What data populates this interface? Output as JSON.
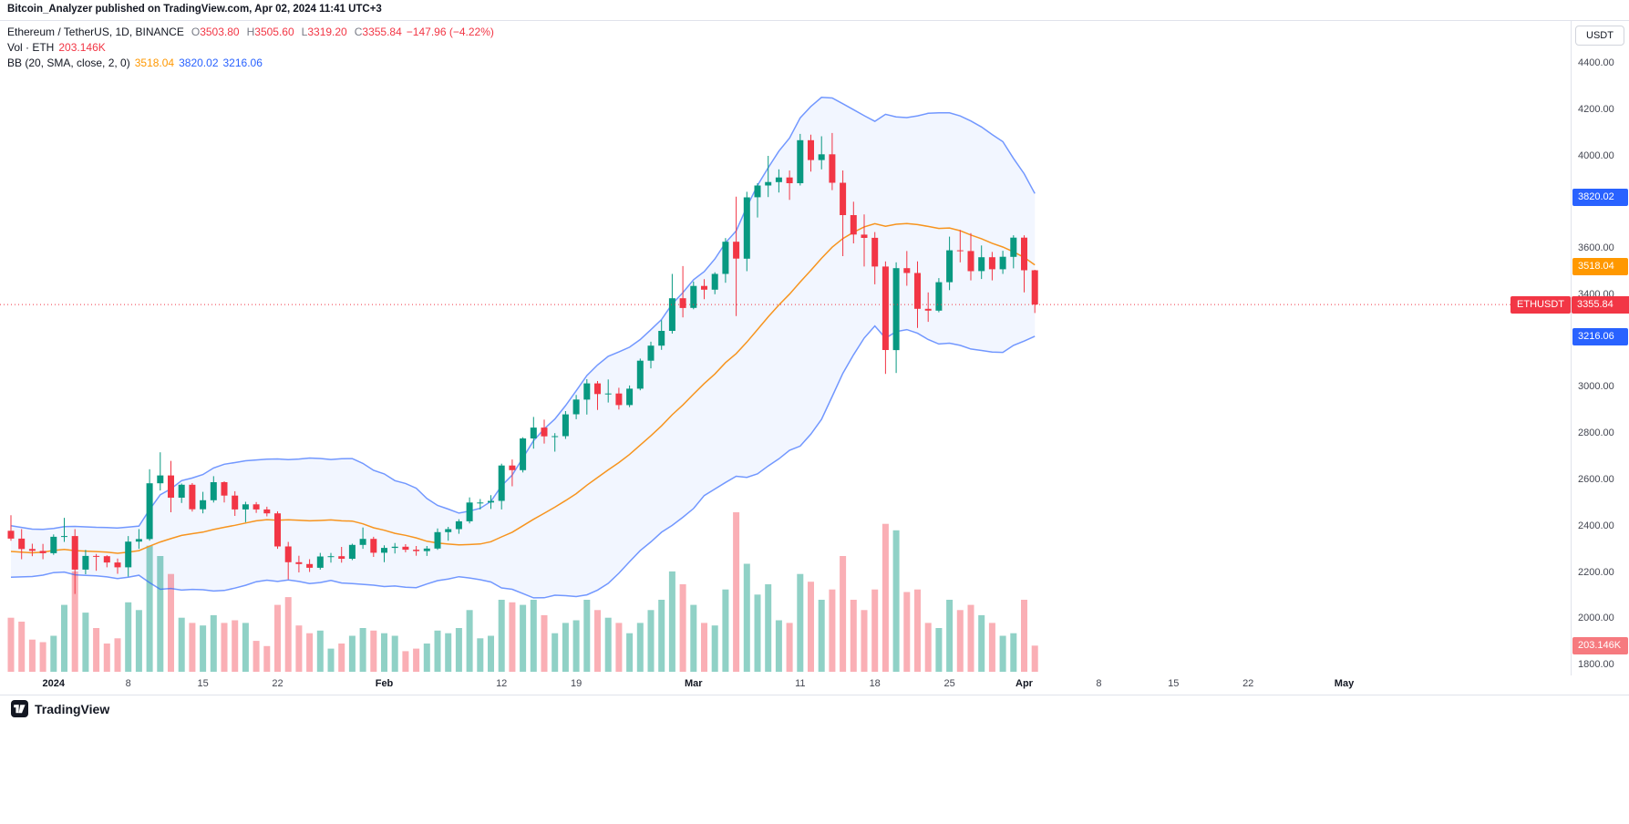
{
  "header": {
    "publish_line": "Bitcoin_Analyzer published on TradingView.com, Apr 02, 2024 11:41 UTC+3"
  },
  "legend": {
    "symbol_title": "Ethereum / TetherUS, 1D, BINANCE",
    "ohlc": [
      {
        "k": "O",
        "v": "3503.80"
      },
      {
        "k": "H",
        "v": "3505.60"
      },
      {
        "k": "L",
        "v": "3319.20"
      },
      {
        "k": "C",
        "v": "3355.84"
      }
    ],
    "change": "−147.96 (−4.22%)",
    "volume_label": "Vol · ETH",
    "volume_value": "203.146K",
    "bb_label": "BB (20, SMA, close, 2, 0)",
    "bb_basis": "3518.04",
    "bb_upper": "3820.02",
    "bb_lower": "3216.06"
  },
  "price_axis": {
    "currency_button": "USDT",
    "ticks": [
      "4400.00",
      "4200.00",
      "4000.00",
      "3800.00",
      "3600.00",
      "3400.00",
      "3200.00",
      "3000.00",
      "2800.00",
      "2600.00",
      "2400.00",
      "2200.00",
      "2000.00",
      "1800.00"
    ],
    "badges": {
      "bb_upper": {
        "text": "3820.02",
        "value": 3820.02,
        "color": "#2962ff"
      },
      "bb_basis": {
        "text": "3518.04",
        "value": 3518.04,
        "color": "#ff9800"
      },
      "last_price": {
        "symbol": "ETHUSDT",
        "text": "3355.84",
        "value": 3355.84,
        "color": "#f23645"
      },
      "bb_lower": {
        "text": "3216.06",
        "value": 3216.06,
        "color": "#2962ff"
      },
      "volume": {
        "text": "203.146K",
        "color": "#f67a7f"
      }
    }
  },
  "time_axis": {
    "ticks": [
      {
        "label": "2024",
        "day": 4,
        "major": true
      },
      {
        "label": "8",
        "day": 11
      },
      {
        "label": "15",
        "day": 18
      },
      {
        "label": "22",
        "day": 25
      },
      {
        "label": "Feb",
        "day": 35,
        "major": true
      },
      {
        "label": "12",
        "day": 46
      },
      {
        "label": "19",
        "day": 53
      },
      {
        "label": "Mar",
        "day": 64,
        "major": true
      },
      {
        "label": "11",
        "day": 74
      },
      {
        "label": "18",
        "day": 81
      },
      {
        "label": "25",
        "day": 88
      },
      {
        "label": "Apr",
        "day": 95,
        "major": true
      },
      {
        "label": "8",
        "day": 102
      },
      {
        "label": "15",
        "day": 109
      },
      {
        "label": "22",
        "day": 116
      },
      {
        "label": "May",
        "day": 125,
        "major": true
      }
    ]
  },
  "footer": {
    "brand": "TradingView"
  },
  "colors": {
    "up": "#089981",
    "down": "#f23645",
    "vol_up": "rgba(8,153,129,0.45)",
    "vol_down": "rgba(242,54,69,0.40)",
    "bb_line": "#2962ff",
    "bb_line_opacity": 0.65,
    "bb_basis": "#f7941e",
    "bb_fill": "rgba(41,98,255,0.06)",
    "last_price_line": "#f23645"
  },
  "chart_data": {
    "type": "candlestick",
    "title": "Ethereum / TetherUS, 1D, BINANCE",
    "symbol": "ETHUSDT",
    "exchange": "BINANCE",
    "interval": "1D",
    "legend_last": {
      "open": 3503.8,
      "high": 3505.6,
      "low": 3319.2,
      "close": 3355.84,
      "change": -147.96,
      "change_pct": -4.22
    },
    "indicators": {
      "bollinger": {
        "length": 20,
        "ma_type": "SMA",
        "source": "close",
        "stddev": 2,
        "offset": 0,
        "basis_last": 3518.04,
        "upper_last": 3820.02,
        "lower_last": 3216.06
      },
      "volume": {
        "label": "Vol · ETH",
        "last": "203.146K"
      }
    },
    "y_axis": {
      "min": 1800,
      "max": 4460,
      "tick_step": 200,
      "currency": "USDT"
    },
    "volume_scale": "thousands of ETH",
    "pre_closes": [
      2358,
      2352,
      2225,
      2203,
      2260,
      2316,
      2311,
      2308,
      2296,
      2316,
      2225,
      2218,
      2198,
      2256,
      2231,
      2295,
      2324,
      2378,
      2356
    ],
    "candles": [
      [
        "2023-12-28",
        2378,
        2445,
        2335,
        2344,
        420
      ],
      [
        "2023-12-29",
        2344,
        2385,
        2255,
        2299,
        390
      ],
      [
        "2023-12-30",
        2299,
        2322,
        2268,
        2291,
        250
      ],
      [
        "2023-12-31",
        2291,
        2321,
        2255,
        2281,
        230
      ],
      [
        "2024-01-01",
        2281,
        2362,
        2274,
        2352,
        280
      ],
      [
        "2024-01-02",
        2352,
        2434,
        2330,
        2355,
        520
      ],
      [
        "2024-01-03",
        2355,
        2385,
        2105,
        2210,
        780
      ],
      [
        "2024-01-04",
        2210,
        2295,
        2190,
        2269,
        460
      ],
      [
        "2024-01-05",
        2269,
        2278,
        2205,
        2268,
        340
      ],
      [
        "2024-01-06",
        2268,
        2272,
        2220,
        2241,
        220
      ],
      [
        "2024-01-07",
        2241,
        2258,
        2192,
        2220,
        260
      ],
      [
        "2024-01-08",
        2220,
        2355,
        2180,
        2331,
        540
      ],
      [
        "2024-01-09",
        2331,
        2385,
        2300,
        2342,
        480
      ],
      [
        "2024-01-10",
        2342,
        2644,
        2335,
        2583,
        980
      ],
      [
        "2024-01-11",
        2583,
        2717,
        2552,
        2617,
        900
      ],
      [
        "2024-01-12",
        2617,
        2680,
        2458,
        2521,
        760
      ],
      [
        "2024-01-13",
        2521,
        2582,
        2498,
        2577,
        420
      ],
      [
        "2024-01-14",
        2577,
        2584,
        2461,
        2471,
        380
      ],
      [
        "2024-01-15",
        2471,
        2546,
        2453,
        2510,
        360
      ],
      [
        "2024-01-16",
        2510,
        2614,
        2500,
        2588,
        440
      ],
      [
        "2024-01-17",
        2588,
        2592,
        2500,
        2530,
        380
      ],
      [
        "2024-01-18",
        2530,
        2549,
        2442,
        2470,
        400
      ],
      [
        "2024-01-19",
        2470,
        2503,
        2415,
        2492,
        380
      ],
      [
        "2024-01-20",
        2492,
        2502,
        2455,
        2470,
        240
      ],
      [
        "2024-01-21",
        2470,
        2482,
        2440,
        2453,
        200
      ],
      [
        "2024-01-22",
        2453,
        2462,
        2300,
        2310,
        520
      ],
      [
        "2024-01-23",
        2310,
        2330,
        2168,
        2242,
        580
      ],
      [
        "2024-01-24",
        2242,
        2270,
        2198,
        2234,
        360
      ],
      [
        "2024-01-25",
        2234,
        2255,
        2200,
        2218,
        300
      ],
      [
        "2024-01-26",
        2218,
        2282,
        2210,
        2267,
        320
      ],
      [
        "2024-01-27",
        2267,
        2282,
        2240,
        2268,
        180
      ],
      [
        "2024-01-28",
        2268,
        2308,
        2240,
        2257,
        220
      ],
      [
        "2024-01-29",
        2257,
        2322,
        2251,
        2317,
        280
      ],
      [
        "2024-01-30",
        2317,
        2392,
        2300,
        2343,
        340
      ],
      [
        "2024-01-31",
        2343,
        2352,
        2265,
        2283,
        320
      ],
      [
        "2024-02-01",
        2283,
        2315,
        2242,
        2304,
        300
      ],
      [
        "2024-02-02",
        2304,
        2325,
        2280,
        2309,
        280
      ],
      [
        "2024-02-03",
        2309,
        2320,
        2285,
        2296,
        160
      ],
      [
        "2024-02-04",
        2296,
        2312,
        2270,
        2290,
        180
      ],
      [
        "2024-02-05",
        2290,
        2312,
        2269,
        2301,
        220
      ],
      [
        "2024-02-06",
        2301,
        2388,
        2295,
        2372,
        320
      ],
      [
        "2024-02-07",
        2372,
        2395,
        2335,
        2385,
        300
      ],
      [
        "2024-02-08",
        2385,
        2428,
        2365,
        2419,
        340
      ],
      [
        "2024-02-09",
        2419,
        2522,
        2410,
        2500,
        480
      ],
      [
        "2024-02-10",
        2500,
        2515,
        2470,
        2500,
        260
      ],
      [
        "2024-02-11",
        2500,
        2532,
        2472,
        2507,
        280
      ],
      [
        "2024-02-12",
        2507,
        2668,
        2470,
        2660,
        560
      ],
      [
        "2024-02-13",
        2660,
        2686,
        2570,
        2640,
        540
      ],
      [
        "2024-02-14",
        2640,
        2782,
        2630,
        2777,
        520
      ],
      [
        "2024-02-15",
        2777,
        2870,
        2733,
        2824,
        560
      ],
      [
        "2024-02-16",
        2824,
        2858,
        2755,
        2786,
        440
      ],
      [
        "2024-02-17",
        2786,
        2800,
        2720,
        2787,
        300
      ],
      [
        "2024-02-18",
        2787,
        2895,
        2775,
        2881,
        380
      ],
      [
        "2024-02-19",
        2881,
        2965,
        2860,
        2945,
        400
      ],
      [
        "2024-02-20",
        2945,
        3033,
        2880,
        3015,
        560
      ],
      [
        "2024-02-21",
        3015,
        3025,
        2900,
        2969,
        480
      ],
      [
        "2024-02-22",
        2969,
        3032,
        2932,
        2971,
        420
      ],
      [
        "2024-02-23",
        2971,
        2996,
        2902,
        2921,
        380
      ],
      [
        "2024-02-24",
        2921,
        3006,
        2912,
        2992,
        300
      ],
      [
        "2024-02-25",
        2992,
        3122,
        2985,
        3113,
        380
      ],
      [
        "2024-02-26",
        3113,
        3195,
        3080,
        3178,
        480
      ],
      [
        "2024-02-27",
        3178,
        3288,
        3160,
        3242,
        560
      ],
      [
        "2024-02-28",
        3242,
        3488,
        3230,
        3383,
        780
      ],
      [
        "2024-02-29",
        3383,
        3522,
        3300,
        3341,
        680
      ],
      [
        "2024-03-01",
        3341,
        3455,
        3335,
        3436,
        520
      ],
      [
        "2024-03-02",
        3436,
        3465,
        3379,
        3420,
        380
      ],
      [
        "2024-03-03",
        3420,
        3495,
        3400,
        3488,
        360
      ],
      [
        "2024-03-04",
        3488,
        3643,
        3450,
        3627,
        640
      ],
      [
        "2024-03-05",
        3627,
        3822,
        3306,
        3554,
        1240
      ],
      [
        "2024-03-06",
        3554,
        3843,
        3500,
        3819,
        840
      ],
      [
        "2024-03-07",
        3819,
        3880,
        3732,
        3870,
        600
      ],
      [
        "2024-03-08",
        3870,
        3998,
        3820,
        3885,
        680
      ],
      [
        "2024-03-09",
        3885,
        3940,
        3840,
        3905,
        400
      ],
      [
        "2024-03-10",
        3905,
        3935,
        3808,
        3880,
        380
      ],
      [
        "2024-03-11",
        3880,
        4093,
        3870,
        4066,
        760
      ],
      [
        "2024-03-12",
        4066,
        4090,
        3930,
        3980,
        700
      ],
      [
        "2024-03-13",
        3980,
        4083,
        3940,
        4005,
        560
      ],
      [
        "2024-03-14",
        4005,
        4097,
        3850,
        3882,
        640
      ],
      [
        "2024-03-15",
        3882,
        3935,
        3565,
        3742,
        900
      ],
      [
        "2024-03-16",
        3742,
        3800,
        3620,
        3658,
        560
      ],
      [
        "2024-03-17",
        3658,
        3745,
        3520,
        3644,
        480
      ],
      [
        "2024-03-18",
        3644,
        3669,
        3443,
        3520,
        640
      ],
      [
        "2024-03-19",
        3520,
        3542,
        3056,
        3159,
        1150
      ],
      [
        "2024-03-20",
        3159,
        3538,
        3060,
        3513,
        1100
      ],
      [
        "2024-03-21",
        3513,
        3587,
        3437,
        3492,
        620
      ],
      [
        "2024-03-22",
        3492,
        3542,
        3255,
        3337,
        640
      ],
      [
        "2024-03-23",
        3337,
        3408,
        3281,
        3329,
        380
      ],
      [
        "2024-03-24",
        3329,
        3470,
        3322,
        3452,
        340
      ],
      [
        "2024-03-25",
        3452,
        3649,
        3418,
        3590,
        560
      ],
      [
        "2024-03-26",
        3590,
        3678,
        3538,
        3587,
        480
      ],
      [
        "2024-03-27",
        3587,
        3664,
        3460,
        3500,
        520
      ],
      [
        "2024-03-28",
        3500,
        3611,
        3466,
        3560,
        440
      ],
      [
        "2024-03-29",
        3560,
        3583,
        3460,
        3508,
        380
      ],
      [
        "2024-03-30",
        3508,
        3588,
        3488,
        3562,
        280
      ],
      [
        "2024-03-31",
        3562,
        3655,
        3512,
        3645,
        300
      ],
      [
        "2024-04-01",
        3645,
        3655,
        3408,
        3503.8,
        560
      ],
      [
        "2024-04-02",
        3503.8,
        3505.6,
        3319.2,
        3355.84,
        203.146
      ]
    ]
  }
}
